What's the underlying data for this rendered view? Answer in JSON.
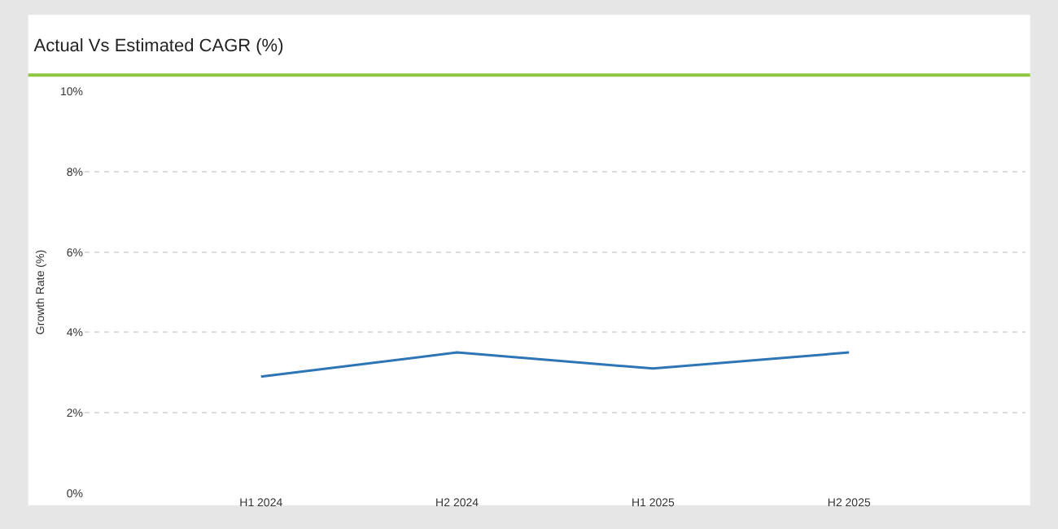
{
  "chart_data": {
    "type": "line",
    "title": "Actual Vs Estimated CAGR (%)",
    "ylabel": "Growth Rate (%)",
    "categories": [
      "H1 2024",
      "H2 2024",
      "H1 2025",
      "H2 2025"
    ],
    "series": [
      {
        "color": "#2e75b6",
        "values": [
          2.9,
          3.5,
          3.1,
          3.5
        ]
      }
    ],
    "ylim": [
      0,
      10
    ],
    "yticks": [
      {
        "value": 0,
        "label": "0%"
      },
      {
        "value": 2,
        "label": "2%"
      },
      {
        "value": 4,
        "label": "4%"
      },
      {
        "value": 6,
        "label": "6%"
      },
      {
        "value": 8,
        "label": "8%"
      },
      {
        "value": 10,
        "label": "10%"
      }
    ],
    "grid": "y",
    "marker": "none",
    "line_style": "solid"
  }
}
